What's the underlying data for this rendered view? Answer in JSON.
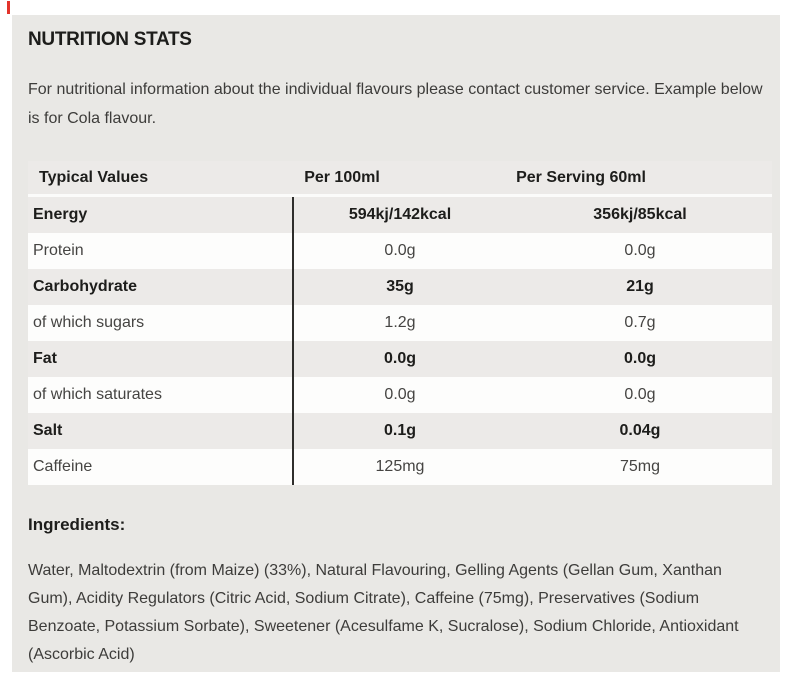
{
  "page": {
    "title": "NUTRITION STATS",
    "intro": "For nutritional information about the individual flavours please contact customer service. Example below is for Cola flavour."
  },
  "table": {
    "columns": [
      "Typical Values",
      "Per 100ml",
      "Per Serving 60ml"
    ],
    "rows": [
      {
        "label": "Energy",
        "per_100ml": "594kj/142kcal",
        "per_serving_60ml": "356kj/85kcal",
        "bold": true
      },
      {
        "label": "Protein",
        "per_100ml": "0.0g",
        "per_serving_60ml": "0.0g",
        "bold": false
      },
      {
        "label": "Carbohydrate",
        "per_100ml": "35g",
        "per_serving_60ml": "21g",
        "bold": true
      },
      {
        "label": "of which sugars",
        "per_100ml": "1.2g",
        "per_serving_60ml": "0.7g",
        "bold": false
      },
      {
        "label": "Fat",
        "per_100ml": "0.0g",
        "per_serving_60ml": "0.0g",
        "bold": true
      },
      {
        "label": "of which saturates",
        "per_100ml": "0.0g",
        "per_serving_60ml": "0.0g",
        "bold": false
      },
      {
        "label": "Salt",
        "per_100ml": "0.1g",
        "per_serving_60ml": "0.04g",
        "bold": true
      },
      {
        "label": "Caffeine",
        "per_100ml": "125mg",
        "per_serving_60ml": "75mg",
        "bold": false
      }
    ]
  },
  "ingredients": {
    "heading": "Ingredients:",
    "text": "Water, Maltodextrin (from Maize) (33%), Natural Flavouring, Gelling Agents (Gellan Gum, Xanthan Gum), Acidity Regulators (Citric Acid, Sodium Citrate), Caffeine (75mg), Preservatives (Sodium Benzoate, Potassium Sorbate), Sweetener (Acesulfame K, Sucralose), Sodium Chloride, Antioxidant (Ascorbic Acid)"
  },
  "colors": {
    "accent_red": "#e3342b",
    "card_background": "#e9e8e5",
    "row_gray": "#eceae8",
    "text_dark": "#1d1d1b",
    "text_body": "#3d3c3a"
  }
}
